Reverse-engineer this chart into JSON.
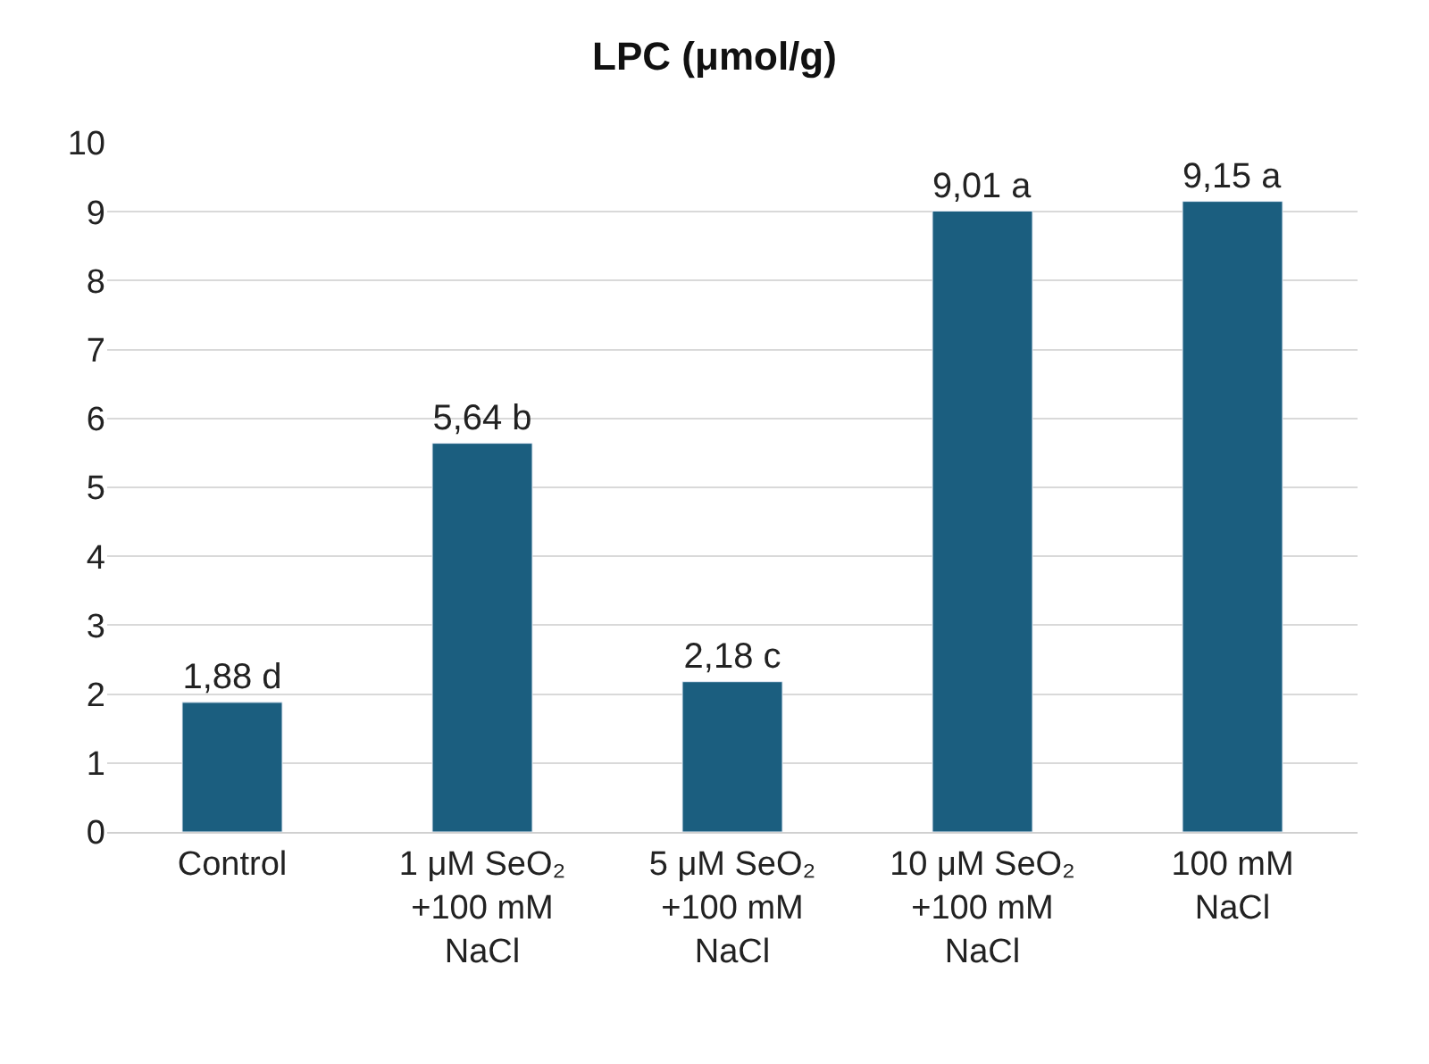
{
  "chart_data": {
    "type": "bar",
    "title": "LPC (μmol/g)",
    "categories": [
      "Control",
      "1 μM SeO₂ +100 mM NaCl",
      "5 μM SeO₂ +100 mM NaCl",
      "10 μM SeO₂ +100 mM NaCl",
      "100 mM NaCl"
    ],
    "values": [
      1.88,
      5.64,
      2.18,
      9.01,
      9.15
    ],
    "value_labels": [
      "1,88 d",
      "5,64 b",
      "2,18 c",
      "9,01 a",
      "9,15 a"
    ],
    "color": "#1b5e7f",
    "ylim": [
      0,
      10
    ],
    "yticks": [
      0,
      1,
      2,
      3,
      4,
      5,
      6,
      7,
      8,
      9,
      10
    ],
    "grid": "y",
    "legend": false
  }
}
